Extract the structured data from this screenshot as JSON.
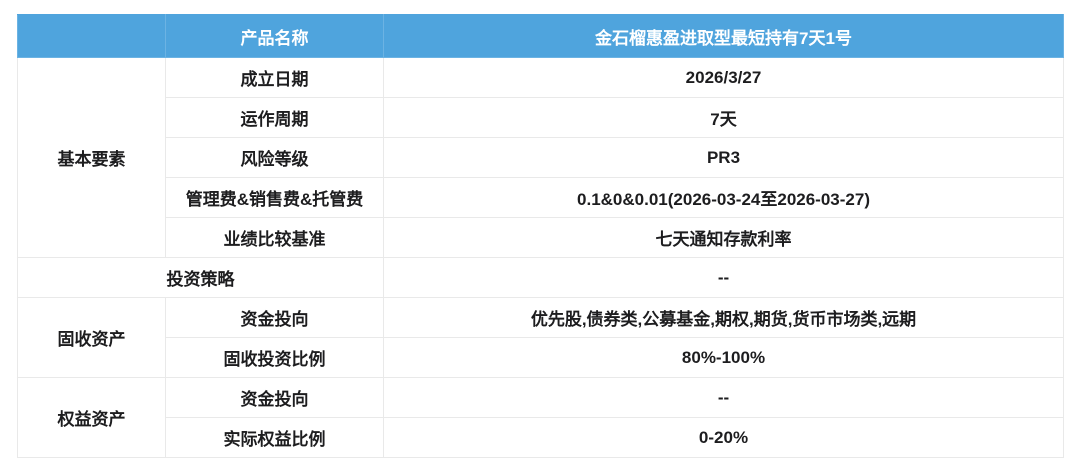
{
  "colors": {
    "header_bg": "#4fa4dd",
    "header_text": "#ffffff",
    "grid_border": "#e9e9e9",
    "body_text": "#1d1d1f"
  },
  "table": {
    "header": {
      "corner": "",
      "name_label": "产品名称",
      "product_name": "金石榴惠盈进取型最短持有7天1号"
    },
    "groups": {
      "basic": {
        "label": "基本要素",
        "rows": [
          {
            "label": "成立日期",
            "value": "2026/3/27"
          },
          {
            "label": "运作周期",
            "value": "7天"
          },
          {
            "label": "风险等级",
            "value": "PR3"
          },
          {
            "label": "管理费&销售费&托管费",
            "value": "0.1&0&0.01(2026-03-24至2026-03-27)"
          },
          {
            "label": "业绩比较基准",
            "value": "七天通知存款利率"
          }
        ]
      },
      "strategy": {
        "label": "投资策略",
        "value": "--"
      },
      "fixed_income": {
        "label": "固收资产",
        "rows": [
          {
            "label": "资金投向",
            "value": "优先股,债券类,公募基金,期权,期货,货币市场类,远期"
          },
          {
            "label": "固收投资比例",
            "value": "80%-100%"
          }
        ]
      },
      "equity": {
        "label": "权益资产",
        "rows": [
          {
            "label": "资金投向",
            "value": "--"
          },
          {
            "label": "实际权益比例",
            "value": "0-20%"
          }
        ]
      }
    }
  }
}
